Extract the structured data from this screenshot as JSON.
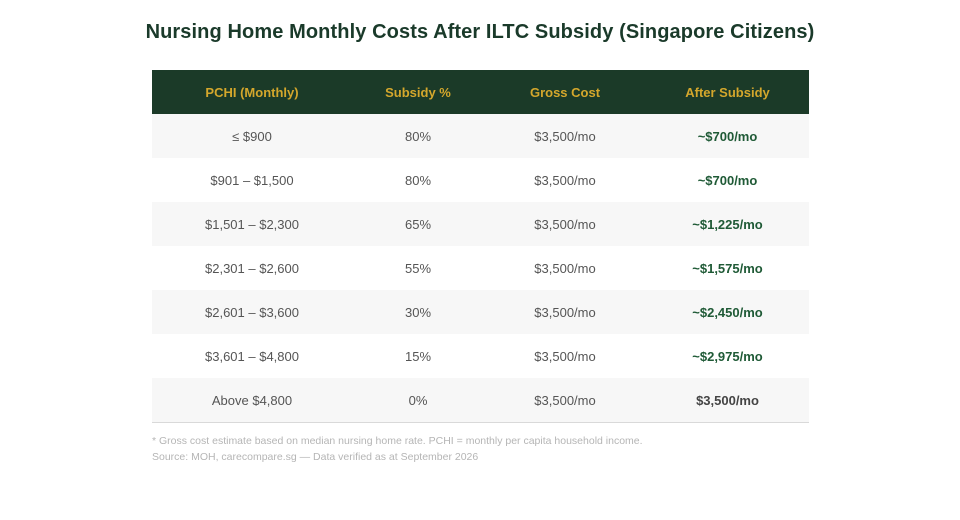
{
  "title": "Nursing Home Monthly Costs After ILTC Subsidy (Singapore Citizens)",
  "table": {
    "headers": [
      "PCHI (Monthly)",
      "Subsidy %",
      "Gross Cost",
      "After Subsidy"
    ],
    "rows": [
      {
        "pchi": "≤ $900",
        "subsidy": "80%",
        "gross": "$3,500/mo",
        "after": "~$700/mo"
      },
      {
        "pchi": "$901 – $1,500",
        "subsidy": "80%",
        "gross": "$3,500/mo",
        "after": "~$700/mo"
      },
      {
        "pchi": "$1,501 – $2,300",
        "subsidy": "65%",
        "gross": "$3,500/mo",
        "after": "~$1,225/mo"
      },
      {
        "pchi": "$2,301 – $2,600",
        "subsidy": "55%",
        "gross": "$3,500/mo",
        "after": "~$1,575/mo"
      },
      {
        "pchi": "$2,601 – $3,600",
        "subsidy": "30%",
        "gross": "$3,500/mo",
        "after": "~$2,450/mo"
      },
      {
        "pchi": "$3,601 – $4,800",
        "subsidy": "15%",
        "gross": "$3,500/mo",
        "after": "~$2,975/mo"
      },
      {
        "pchi": "Above $4,800",
        "subsidy": "0%",
        "gross": "$3,500/mo",
        "after": "$3,500/mo"
      }
    ]
  },
  "footnote": "* Gross cost estimate based on median nursing home rate. PCHI = monthly per capita household income.",
  "source": "Source: MOH, carecompare.sg — Data verified as at September 2026",
  "colors": {
    "header_bg": "#1b3a28",
    "header_text": "#d4a72c",
    "title": "#1a3a2a",
    "after_subsidy": "#1f5a36"
  }
}
